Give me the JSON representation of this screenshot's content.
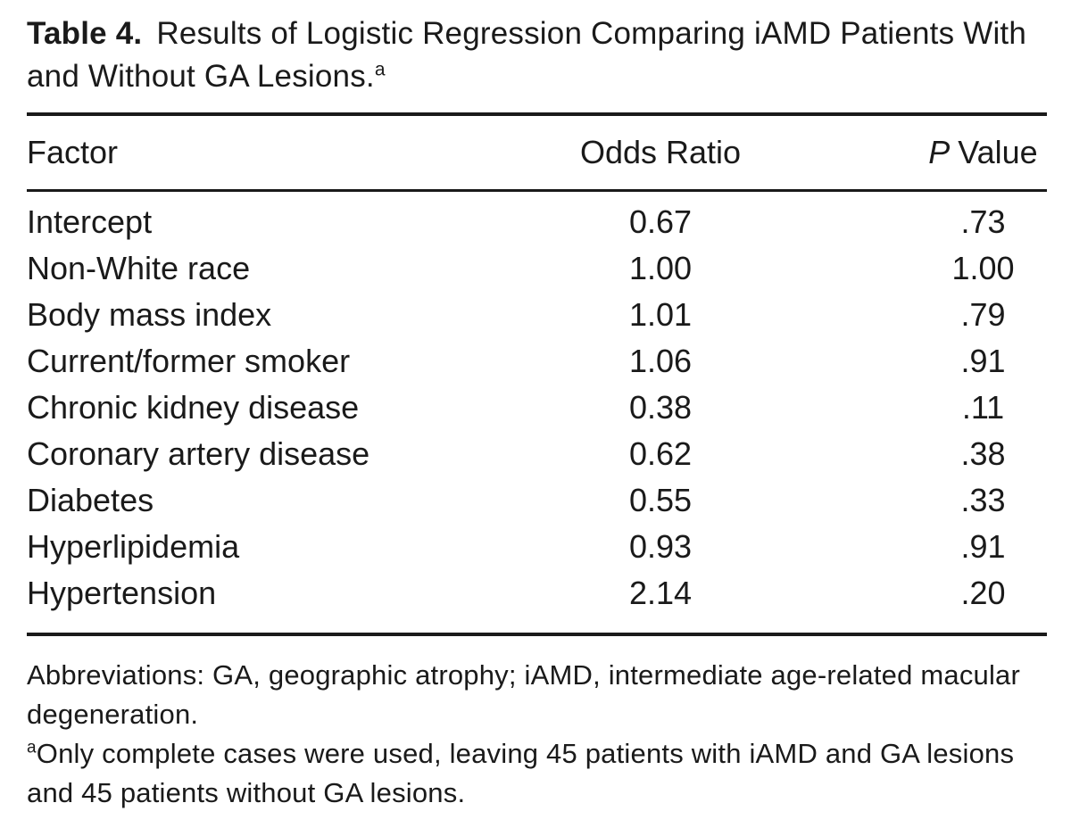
{
  "title": {
    "label": "Table 4.",
    "text": "Results of Logistic Regression Comparing iAMD Patients With and Without GA Lesions.",
    "footnote_marker": "a"
  },
  "table": {
    "header": {
      "factor": "Factor",
      "odds_ratio": "Odds Ratio",
      "p_value_italic": "P",
      "p_value_rest": "Value"
    },
    "rows": [
      {
        "factor": "Intercept",
        "odds_ratio": "0.67",
        "p_value": ".73"
      },
      {
        "factor": "Non-White race",
        "odds_ratio": "1.00",
        "p_value": "1.00"
      },
      {
        "factor": "Body mass index",
        "odds_ratio": "1.01",
        "p_value": ".79"
      },
      {
        "factor": "Current/former smoker",
        "odds_ratio": "1.06",
        "p_value": ".91"
      },
      {
        "factor": "Chronic kidney disease",
        "odds_ratio": "0.38",
        "p_value": ".11"
      },
      {
        "factor": "Coronary artery disease",
        "odds_ratio": "0.62",
        "p_value": ".38"
      },
      {
        "factor": "Diabetes",
        "odds_ratio": "0.55",
        "p_value": ".33"
      },
      {
        "factor": "Hyperlipidemia",
        "odds_ratio": "0.93",
        "p_value": ".91"
      },
      {
        "factor": "Hypertension",
        "odds_ratio": "2.14",
        "p_value": ".20"
      }
    ]
  },
  "footnotes": {
    "abbreviations": "Abbreviations: GA, geographic atrophy; iAMD, intermediate age-related macular degeneration.",
    "note_marker": "a",
    "note": "Only complete cases were used, leaving 45 patients with iAMD and GA lesions and 45 patients without GA lesions."
  },
  "colors": {
    "text": "#1a1a1a",
    "background": "#ffffff",
    "rule": "#1a1a1a"
  }
}
